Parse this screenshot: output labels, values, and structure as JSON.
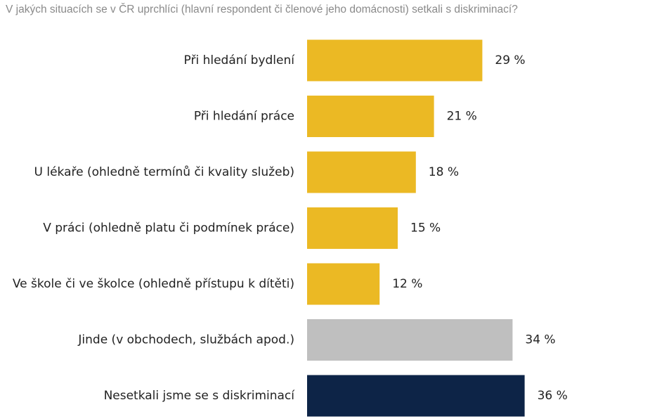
{
  "chart_data": {
    "type": "bar",
    "orientation": "horizontal",
    "title": "V jakých situacích se v ČR uprchlíci (hlavní respondent či členové jeho domácnosti) setkali s diskriminací?",
    "categories": [
      "Při hledání bydlení",
      "Při hledání práce",
      "U lékaře (ohledně termínů či kvality služeb)",
      "V práci (ohledně platu či podmínek práce)",
      "Ve škole či ve školce (ohledně přístupu k dítěti)",
      "Jinde (v obchodech, službách apod.)",
      "Nesetkali jsme se s diskriminací"
    ],
    "values": [
      29,
      21,
      18,
      15,
      12,
      34,
      36
    ],
    "value_labels": [
      "29 %",
      "21 %",
      "18 %",
      "15 %",
      "12 %",
      "34 %",
      "36 %"
    ],
    "bar_colors": [
      "#ebb924",
      "#ebb924",
      "#ebb924",
      "#ebb924",
      "#ebb924",
      "#bfbfbf",
      "#0d2447"
    ],
    "xlabel": "",
    "ylabel": "",
    "xlim": [
      0,
      36
    ],
    "grid": false,
    "legend": "none"
  }
}
